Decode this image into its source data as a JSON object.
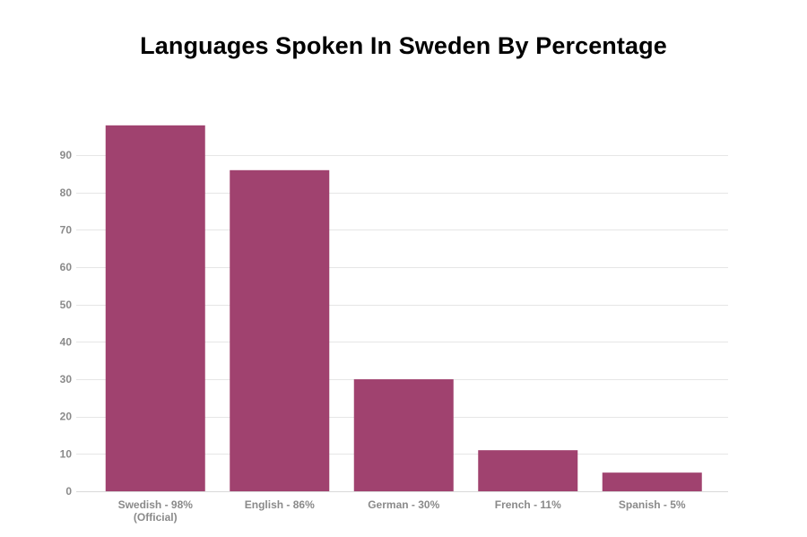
{
  "chart_data": {
    "type": "bar",
    "title": "Languages Spoken In Sweden By Percentage",
    "xlabel": "",
    "ylabel": "",
    "categories": [
      [
        "Swedish - 98%",
        "(Official)"
      ],
      [
        "English - 86%"
      ],
      [
        "German - 30%"
      ],
      [
        "French - 11%"
      ],
      [
        "Spanish - 5%"
      ]
    ],
    "values": [
      98,
      86,
      30,
      11,
      5
    ],
    "ylim": [
      0,
      100
    ],
    "yticks": [
      0,
      10,
      20,
      30,
      40,
      50,
      60,
      70,
      80,
      90
    ],
    "grid": true,
    "legend": "none",
    "bar_color": "#a0426f",
    "grid_color": "#e6e6e6",
    "label_color": "#8a8a8a"
  }
}
